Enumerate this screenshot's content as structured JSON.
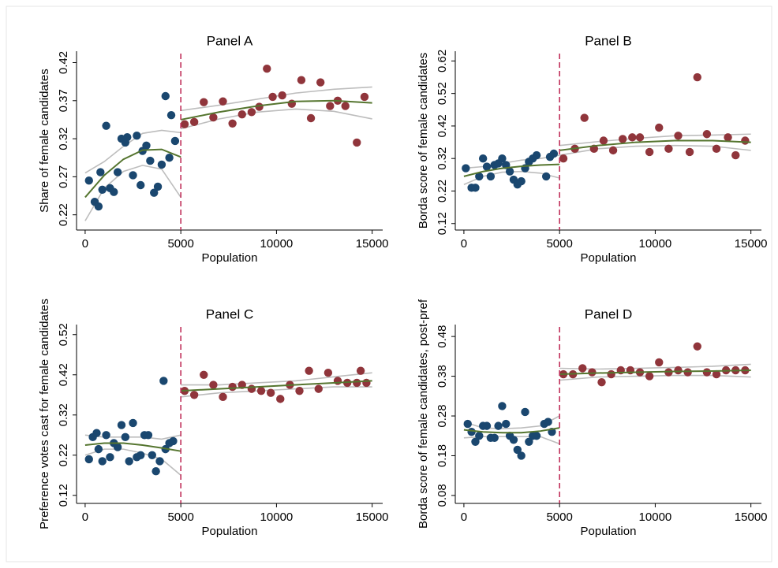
{
  "chart_data": [
    {
      "type": "scatter",
      "title": "Panel A",
      "x_label": "Population",
      "y_label": "Share of female candidates",
      "xlim": [
        -450,
        15550
      ],
      "xticks": [
        0,
        5000,
        10000,
        15000
      ],
      "ylim": [
        0.2,
        0.435
      ],
      "yticks": [
        0.22,
        0.27,
        0.32,
        0.37,
        0.42
      ],
      "cutoff": 5000,
      "cutoff_color": "#c0305a",
      "fit_color": "#55752f",
      "band_color": "#bdbdbd",
      "series": [
        {
          "color": "#1a476f",
          "x": [
            200,
            500,
            700,
            800,
            900,
            1100,
            1300,
            1500,
            1700,
            1900,
            2100,
            2200,
            2500,
            2700,
            2900,
            3000,
            3200,
            3400,
            3600,
            3800,
            4000,
            4200,
            4400,
            4500,
            4700
          ],
          "values": [
            0.265,
            0.237,
            0.231,
            0.276,
            0.253,
            0.337,
            0.255,
            0.25,
            0.276,
            0.32,
            0.315,
            0.322,
            0.272,
            0.324,
            0.259,
            0.304,
            0.311,
            0.291,
            0.249,
            0.257,
            0.286,
            0.376,
            0.295,
            0.351,
            0.317
          ]
        },
        {
          "color": "#90353b",
          "x": [
            5200,
            5700,
            6200,
            6700,
            7200,
            7700,
            8200,
            8700,
            9100,
            9500,
            9800,
            10300,
            10800,
            11300,
            11800,
            12300,
            12800,
            13200,
            13600,
            14200,
            14600
          ],
          "values": [
            0.339,
            0.342,
            0.368,
            0.348,
            0.369,
            0.34,
            0.352,
            0.355,
            0.362,
            0.412,
            0.375,
            0.377,
            0.366,
            0.397,
            0.347,
            0.394,
            0.363,
            0.37,
            0.363,
            0.315,
            0.375
          ]
        }
      ],
      "fits": [
        {
          "x": [
            0,
            1000,
            2000,
            3000,
            4000,
            5000
          ],
          "values": [
            0.243,
            0.272,
            0.293,
            0.305,
            0.306,
            0.296
          ],
          "upper": [
            0.275,
            0.29,
            0.31,
            0.327,
            0.331,
            0.328
          ],
          "lower": [
            0.212,
            0.255,
            0.277,
            0.285,
            0.28,
            0.243
          ]
        },
        {
          "x": [
            5000,
            7000,
            9000,
            11000,
            13000,
            15000
          ],
          "values": [
            0.345,
            0.355,
            0.363,
            0.369,
            0.37,
            0.367
          ],
          "upper": [
            0.357,
            0.364,
            0.372,
            0.38,
            0.385,
            0.388
          ],
          "lower": [
            0.333,
            0.346,
            0.355,
            0.359,
            0.356,
            0.346
          ]
        }
      ]
    },
    {
      "type": "scatter",
      "title": "Panel B",
      "x_label": "Population",
      "y_label": "Borda score of female candidates",
      "xlim": [
        -450,
        15550
      ],
      "xticks": [
        0,
        5000,
        10000,
        15000
      ],
      "ylim": [
        0.1,
        0.65
      ],
      "yticks": [
        0.12,
        0.22,
        0.32,
        0.42,
        0.52,
        0.62
      ],
      "cutoff": 5000,
      "cutoff_color": "#c0305a",
      "fit_color": "#55752f",
      "band_color": "#bdbdbd",
      "series": [
        {
          "color": "#1a476f",
          "x": [
            100,
            400,
            600,
            800,
            1000,
            1200,
            1400,
            1600,
            1800,
            2000,
            2200,
            2400,
            2600,
            2800,
            3000,
            3200,
            3400,
            3600,
            3800,
            4300,
            4500,
            4700
          ],
          "values": [
            0.29,
            0.23,
            0.23,
            0.265,
            0.32,
            0.295,
            0.265,
            0.3,
            0.305,
            0.32,
            0.3,
            0.28,
            0.255,
            0.24,
            0.25,
            0.29,
            0.31,
            0.32,
            0.33,
            0.265,
            0.325,
            0.335
          ]
        },
        {
          "color": "#90353b",
          "x": [
            5200,
            5800,
            6300,
            6800,
            7300,
            7800,
            8300,
            8800,
            9200,
            9700,
            10200,
            10700,
            11200,
            11800,
            12200,
            12700,
            13200,
            13800,
            14200,
            14700
          ],
          "values": [
            0.32,
            0.35,
            0.445,
            0.35,
            0.375,
            0.345,
            0.38,
            0.385,
            0.385,
            0.34,
            0.415,
            0.35,
            0.39,
            0.34,
            0.57,
            0.395,
            0.35,
            0.385,
            0.33,
            0.375
          ]
        }
      ],
      "fits": [
        {
          "x": [
            0,
            1000,
            2000,
            3000,
            4000,
            5000
          ],
          "values": [
            0.265,
            0.28,
            0.29,
            0.296,
            0.3,
            0.302
          ],
          "upper": [
            0.29,
            0.295,
            0.305,
            0.315,
            0.32,
            0.33
          ],
          "lower": [
            0.24,
            0.265,
            0.278,
            0.28,
            0.275,
            0.26
          ]
        },
        {
          "x": [
            5000,
            7000,
            9000,
            11000,
            13000,
            15000
          ],
          "values": [
            0.345,
            0.36,
            0.37,
            0.375,
            0.375,
            0.37
          ],
          "upper": [
            0.36,
            0.372,
            0.382,
            0.39,
            0.392,
            0.395
          ],
          "lower": [
            0.33,
            0.35,
            0.358,
            0.36,
            0.358,
            0.345
          ]
        }
      ]
    },
    {
      "type": "scatter",
      "title": "Panel C",
      "x_label": "Population",
      "y_label": "Preference votes cast for female candidates",
      "xlim": [
        -450,
        15550
      ],
      "xticks": [
        0,
        5000,
        10000,
        15000
      ],
      "ylim": [
        0.1,
        0.545
      ],
      "yticks": [
        0.12,
        0.22,
        0.32,
        0.42,
        0.52
      ],
      "cutoff": 5000,
      "cutoff_color": "#c0305a",
      "fit_color": "#55752f",
      "band_color": "#bdbdbd",
      "series": [
        {
          "color": "#1a476f",
          "x": [
            200,
            400,
            600,
            700,
            900,
            1100,
            1300,
            1500,
            1700,
            1900,
            2100,
            2300,
            2500,
            2700,
            2900,
            3100,
            3300,
            3500,
            3700,
            3900,
            4100,
            4200,
            4400,
            4600
          ],
          "values": [
            0.21,
            0.265,
            0.275,
            0.235,
            0.205,
            0.27,
            0.215,
            0.25,
            0.24,
            0.295,
            0.265,
            0.205,
            0.3,
            0.215,
            0.22,
            0.27,
            0.27,
            0.22,
            0.18,
            0.205,
            0.405,
            0.235,
            0.25,
            0.255
          ]
        },
        {
          "color": "#90353b",
          "x": [
            5200,
            5700,
            6200,
            6700,
            7200,
            7700,
            8200,
            8700,
            9200,
            9700,
            10200,
            10700,
            11200,
            11700,
            12200,
            12700,
            13200,
            13700,
            14200,
            14400,
            14700
          ],
          "values": [
            0.38,
            0.37,
            0.42,
            0.395,
            0.365,
            0.39,
            0.395,
            0.385,
            0.38,
            0.375,
            0.36,
            0.395,
            0.38,
            0.43,
            0.385,
            0.425,
            0.405,
            0.4,
            0.4,
            0.43,
            0.4
          ]
        }
      ],
      "fits": [
        {
          "x": [
            0,
            1000,
            2000,
            3000,
            4000,
            5000
          ],
          "values": [
            0.245,
            0.25,
            0.25,
            0.245,
            0.238,
            0.23
          ],
          "upper": [
            0.27,
            0.265,
            0.265,
            0.265,
            0.26,
            0.27
          ],
          "lower": [
            0.22,
            0.235,
            0.235,
            0.225,
            0.21,
            0.17
          ]
        },
        {
          "x": [
            5000,
            7000,
            9000,
            11000,
            13000,
            15000
          ],
          "values": [
            0.38,
            0.385,
            0.39,
            0.395,
            0.4,
            0.405
          ],
          "upper": [
            0.395,
            0.395,
            0.4,
            0.405,
            0.415,
            0.425
          ],
          "lower": [
            0.365,
            0.375,
            0.38,
            0.385,
            0.39,
            0.39
          ]
        }
      ]
    },
    {
      "type": "scatter",
      "title": "Panel D",
      "x_label": "Population",
      "y_label": "Borda score of female candidates, post-pref",
      "xlim": [
        -450,
        15550
      ],
      "xticks": [
        0,
        5000,
        10000,
        15000
      ],
      "ylim": [
        0.06,
        0.51
      ],
      "yticks": [
        0.08,
        0.18,
        0.28,
        0.38,
        0.48
      ],
      "cutoff": 5000,
      "cutoff_color": "#c0305a",
      "fit_color": "#55752f",
      "band_color": "#bdbdbd",
      "series": [
        {
          "color": "#1a476f",
          "x": [
            200,
            400,
            600,
            800,
            1000,
            1200,
            1400,
            1600,
            1800,
            2000,
            2200,
            2400,
            2600,
            2800,
            3000,
            3200,
            3400,
            3600,
            3800,
            4200,
            4400,
            4600
          ],
          "values": [
            0.26,
            0.24,
            0.215,
            0.23,
            0.255,
            0.255,
            0.225,
            0.225,
            0.255,
            0.305,
            0.26,
            0.23,
            0.22,
            0.195,
            0.18,
            0.29,
            0.215,
            0.23,
            0.23,
            0.26,
            0.265,
            0.24
          ]
        },
        {
          "color": "#90353b",
          "x": [
            5200,
            5700,
            6200,
            6700,
            7200,
            7700,
            8200,
            8700,
            9200,
            9700,
            10200,
            10700,
            11200,
            11700,
            12200,
            12700,
            13200,
            13700,
            14200,
            14700
          ],
          "values": [
            0.385,
            0.385,
            0.4,
            0.39,
            0.365,
            0.385,
            0.395,
            0.395,
            0.39,
            0.38,
            0.415,
            0.39,
            0.395,
            0.39,
            0.455,
            0.39,
            0.385,
            0.395,
            0.395,
            0.395
          ]
        }
      ],
      "fits": [
        {
          "x": [
            0,
            1000,
            2000,
            3000,
            4000,
            5000
          ],
          "values": [
            0.245,
            0.24,
            0.238,
            0.238,
            0.242,
            0.25
          ],
          "upper": [
            0.265,
            0.25,
            0.248,
            0.25,
            0.255,
            0.28
          ],
          "lower": [
            0.225,
            0.228,
            0.228,
            0.228,
            0.228,
            0.21
          ]
        },
        {
          "x": [
            5000,
            7000,
            9000,
            11000,
            13000,
            15000
          ],
          "values": [
            0.385,
            0.388,
            0.39,
            0.392,
            0.393,
            0.395
          ],
          "upper": [
            0.4,
            0.398,
            0.4,
            0.402,
            0.405,
            0.41
          ],
          "lower": [
            0.37,
            0.378,
            0.38,
            0.382,
            0.382,
            0.378
          ]
        }
      ]
    }
  ]
}
